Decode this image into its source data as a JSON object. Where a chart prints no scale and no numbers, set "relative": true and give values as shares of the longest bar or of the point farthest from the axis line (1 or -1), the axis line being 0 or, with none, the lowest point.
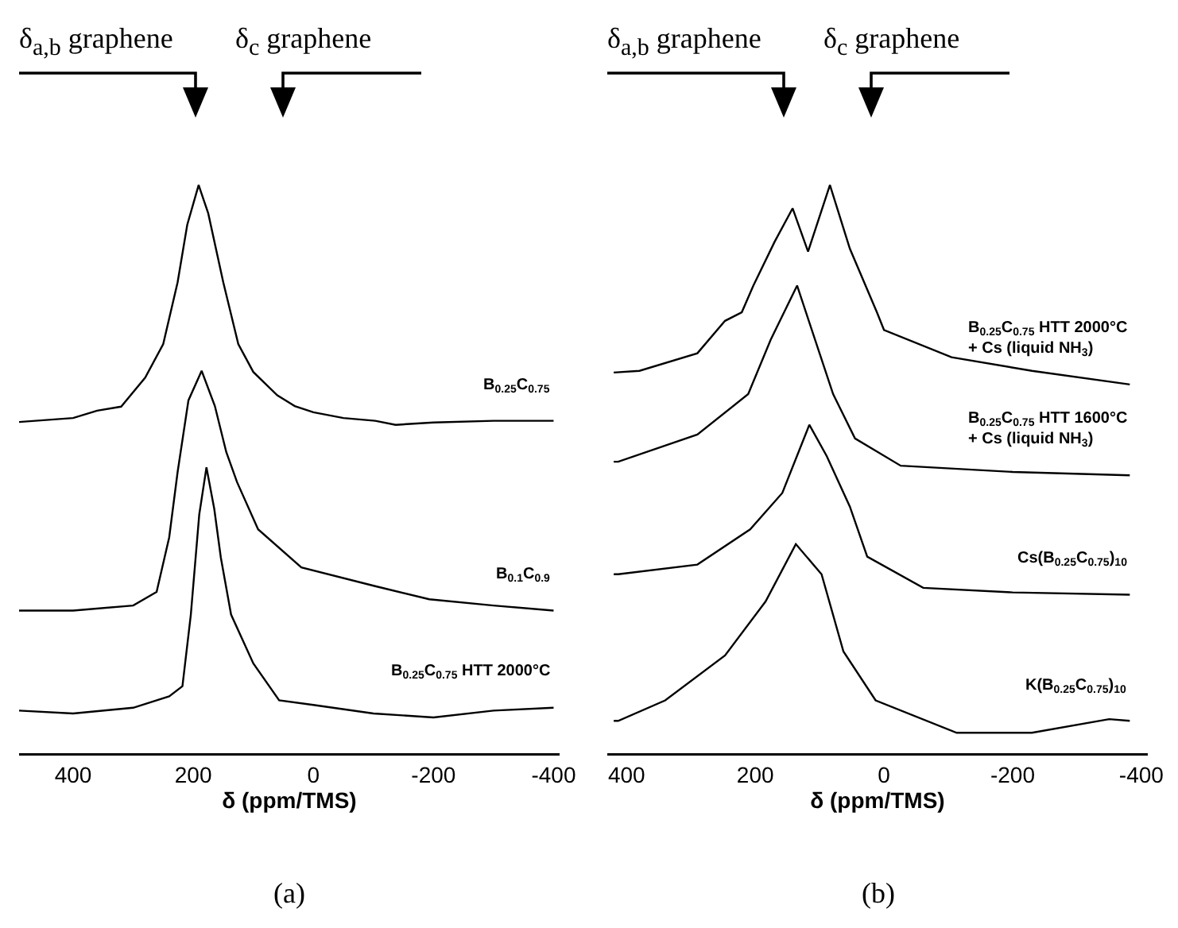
{
  "chart_data": [
    {
      "type": "line",
      "relative": true,
      "xlabel": "δ (ppm/TMS)",
      "xlim": [
        490,
        -410
      ],
      "xticks": [
        400,
        200,
        0,
        -200,
        -400
      ],
      "tick_labels": "x",
      "grid": false,
      "legend": false,
      "marker": "none",
      "line_style": "solid",
      "annotations": [
        "δ$_{a,b}$ graphene",
        "δ$_{c}$ graphene",
        "(a)"
      ],
      "series": [
        {
          "name": "B$_{0.25}$C$_{0.75}$",
          "color": "#000000",
          "x": [
            490,
            400,
            360,
            320,
            280,
            250,
            226,
            210,
            191,
            175,
            150,
            125,
            100,
            60,
            31,
            0,
            -50,
            -103,
            -137,
            -200,
            -300,
            -400
          ],
          "values": [
            0.583,
            0.59,
            0.603,
            0.61,
            0.661,
            0.72,
            0.829,
            0.93,
            1.0,
            0.95,
            0.829,
            0.72,
            0.671,
            0.63,
            0.611,
            0.6,
            0.59,
            0.585,
            0.578,
            0.582,
            0.585,
            0.585
          ]
        },
        {
          "name": "B$_{0.1}$C$_{0.9}$",
          "color": "#000000",
          "x": [
            490,
            400,
            300,
            261,
            240,
            226,
            208,
            186,
            164,
            145,
            127,
            92,
            20,
            -103,
            -193,
            -300,
            -400
          ],
          "values": [
            0.251,
            0.251,
            0.26,
            0.284,
            0.38,
            0.495,
            0.621,
            0.673,
            0.611,
            0.53,
            0.477,
            0.394,
            0.327,
            0.294,
            0.271,
            0.26,
            0.251
          ]
        },
        {
          "name": "B$_{0.25}$C$_{0.75}$ HTT 2000°C",
          "color": "#000000",
          "x": [
            490,
            400,
            300,
            240,
            218,
            204,
            190,
            178,
            165,
            154,
            137,
            100,
            57,
            0,
            -100,
            -200,
            -300,
            -400
          ],
          "values": [
            0.075,
            0.07,
            0.08,
            0.1,
            0.118,
            0.244,
            0.42,
            0.503,
            0.43,
            0.344,
            0.244,
            0.158,
            0.093,
            0.085,
            0.07,
            0.063,
            0.075,
            0.08
          ]
        }
      ]
    },
    {
      "type": "line",
      "relative": true,
      "xlabel": "δ (ppm/TMS)",
      "xlim": [
        430,
        -410
      ],
      "xticks": [
        400,
        200,
        0,
        -200,
        -400
      ],
      "tick_labels": "x",
      "grid": false,
      "legend": false,
      "marker": "none",
      "line_style": "solid",
      "annotations": [
        "δ$_{a,b}$ graphene",
        "δ$_{c}$ graphene",
        "(b)"
      ],
      "series": [
        {
          "name": "B$_{0.25}$C$_{0.75}$ HTT 2000°C\n+ Cs (liquid NH$_{3}$)",
          "color": "#000000",
          "x": [
            420,
            380,
            290,
            247,
            221,
            203,
            170,
            142,
            118,
            84,
            53,
            11,
            0,
            -105,
            -230,
            -382
          ],
          "values": [
            0.67,
            0.673,
            0.704,
            0.761,
            0.776,
            0.823,
            0.9,
            0.959,
            0.883,
            1.0,
            0.888,
            0.776,
            0.745,
            0.697,
            0.673,
            0.649
          ]
        },
        {
          "name": "B$_{0.25}$C$_{0.75}$ HTT 1600°C\n+ Cs (liquid NH$_{3}$)",
          "color": "#000000",
          "x": [
            420,
            413,
            290,
            211,
            176,
            135,
            79,
            45,
            -26,
            -200,
            -382
          ],
          "values": [
            0.513,
            0.513,
            0.561,
            0.632,
            0.728,
            0.823,
            0.632,
            0.554,
            0.506,
            0.495,
            0.489
          ]
        },
        {
          "name": "Cs(B$_{0.25}$C$_{0.75}$)$_{10}$",
          "color": "#000000",
          "x": [
            420,
            413,
            290,
            208,
            158,
            116,
            89,
            53,
            26,
            -61,
            -200,
            -382
          ],
          "values": [
            0.315,
            0.315,
            0.332,
            0.394,
            0.458,
            0.578,
            0.523,
            0.434,
            0.346,
            0.291,
            0.283,
            0.279
          ]
        },
        {
          "name": "K(B$_{0.25}$C$_{0.75}$)$_{10}$",
          "color": "#000000",
          "x": [
            420,
            413,
            340,
            247,
            184,
            137,
            97,
            63,
            13,
            -113,
            -230,
            -350,
            -382
          ],
          "values": [
            0.057,
            0.057,
            0.093,
            0.172,
            0.267,
            0.368,
            0.315,
            0.179,
            0.093,
            0.036,
            0.036,
            0.06,
            0.057
          ]
        }
      ]
    }
  ]
}
